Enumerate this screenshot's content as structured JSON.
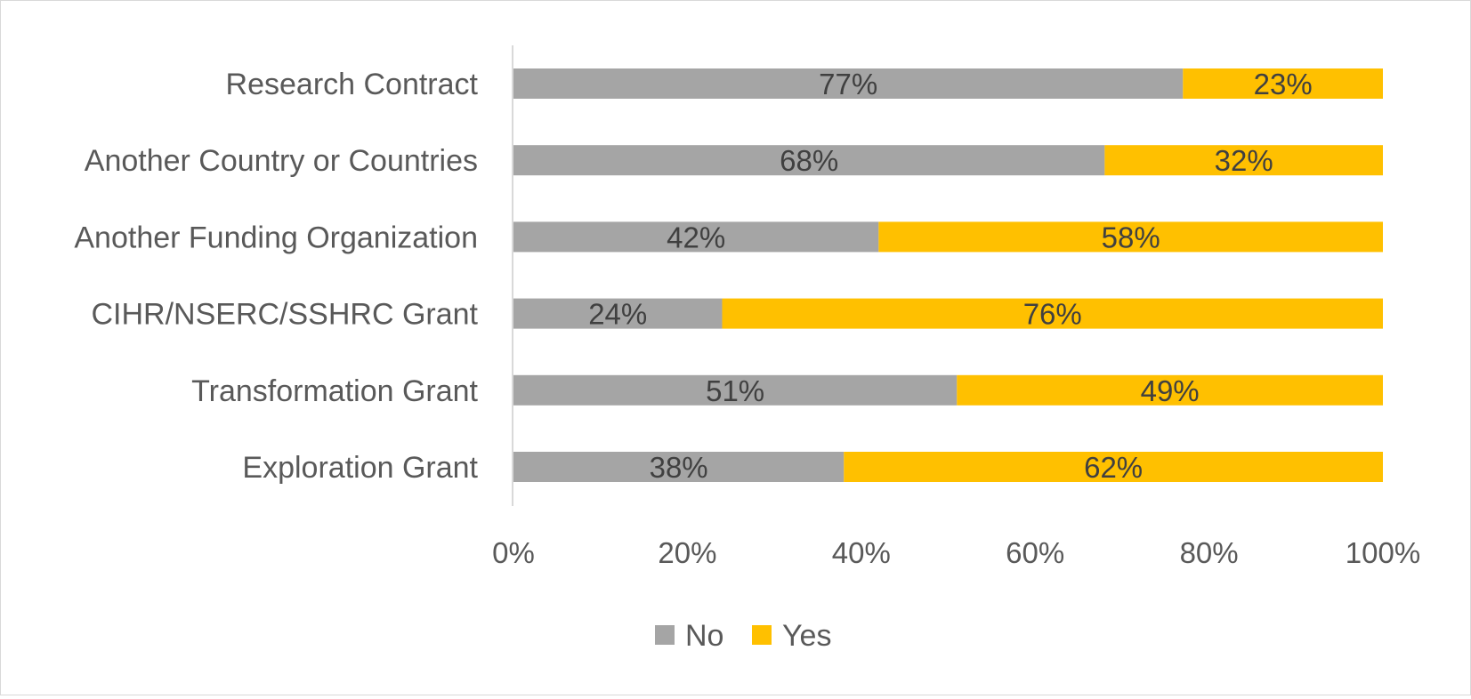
{
  "chart_data": {
    "type": "bar",
    "orientation": "horizontal",
    "stacked": "percent",
    "categories": [
      "Research Contract",
      "Another Country or Countries",
      "Another Funding Organization",
      "CIHR/NSERC/SSHRC Grant",
      "Transformation Grant",
      "Exploration Grant"
    ],
    "series": [
      {
        "name": "No",
        "color": "#a5a5a5",
        "values": [
          77,
          68,
          42,
          24,
          51,
          38
        ],
        "labels": [
          "77%",
          "68%",
          "42%",
          "24%",
          "51%",
          "38%"
        ]
      },
      {
        "name": "Yes",
        "color": "#ffc000",
        "values": [
          23,
          32,
          58,
          76,
          49,
          62
        ],
        "labels": [
          "23%",
          "32%",
          "58%",
          "76%",
          "49%",
          "62%"
        ]
      }
    ],
    "xlim": [
      0,
      100
    ],
    "xticks": [
      "0%",
      "20%",
      "40%",
      "60%",
      "80%",
      "100%"
    ],
    "grid": false,
    "legend_position": "bottom",
    "title": "",
    "xlabel": "",
    "ylabel": ""
  }
}
